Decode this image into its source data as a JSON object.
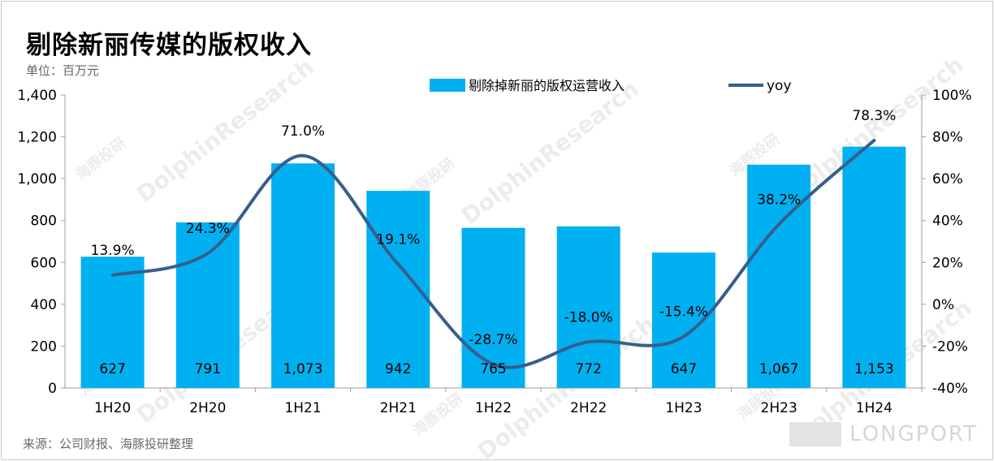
{
  "title": "剔除新丽传媒的版权收入",
  "unit": "单位：百万元",
  "source": "来源：公司财报、海豚投研整理",
  "watermark": {
    "cn": "海豚投研",
    "en": "DolphinResearch"
  },
  "brand": "LONGPORT",
  "colors": {
    "bar": "#00B0F0",
    "line": "#355F8D",
    "axis": "#9e9e9e"
  },
  "legend": {
    "bar": "剔除掉新丽的版权运营收入",
    "line": "yoy"
  },
  "chart_data": {
    "type": "bar",
    "categories": [
      "1H20",
      "2H20",
      "1H21",
      "2H21",
      "1H22",
      "2H22",
      "1H23",
      "2H23",
      "1H24"
    ],
    "series": [
      {
        "name": "剔除掉新丽的版权运营收入",
        "type": "bar",
        "axis": "left",
        "values": [
          627,
          791,
          1073,
          942,
          765,
          772,
          647,
          1067,
          1153
        ],
        "labels": [
          "627",
          "791",
          "1,073",
          "942",
          "765",
          "772",
          "647",
          "1,067",
          "1,153"
        ]
      },
      {
        "name": "yoy",
        "type": "line",
        "axis": "right",
        "values": [
          13.9,
          24.3,
          71.0,
          19.1,
          -28.7,
          -18.0,
          -15.4,
          38.2,
          78.3
        ],
        "labels": [
          "13.9%",
          "24.3%",
          "71.0%",
          "19.1%",
          "-28.7%",
          "-18.0%",
          "-15.4%",
          "38.2%",
          "78.3%"
        ]
      }
    ],
    "y_left": {
      "min": 0,
      "max": 1400,
      "ticks": [
        "0",
        "200",
        "400",
        "600",
        "800",
        "1,000",
        "1,200",
        "1,400"
      ]
    },
    "y_right": {
      "min": -40,
      "max": 100,
      "ticks": [
        "-40%",
        "-20%",
        "0%",
        "20%",
        "40%",
        "60%",
        "80%",
        "100%"
      ]
    },
    "grid": false,
    "legend_position": "top"
  }
}
